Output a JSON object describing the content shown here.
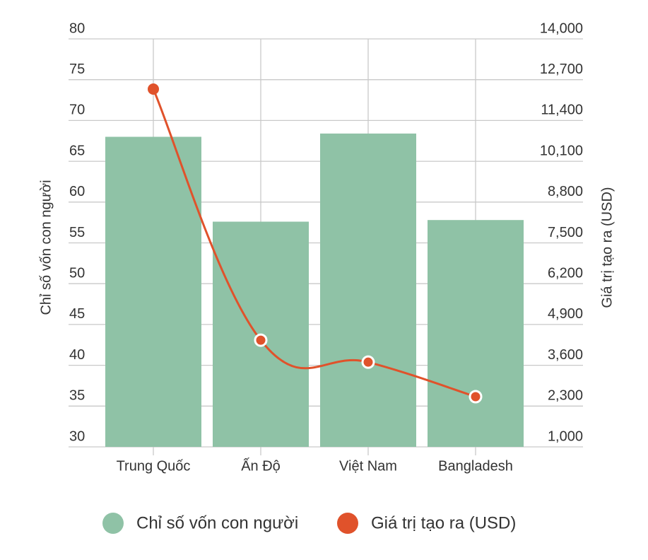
{
  "chart_data": {
    "type": "bar-line",
    "y_label": "Chỉ số vốn con người",
    "y2_label": "Giá trị tạo ra (USD)",
    "categories": [
      "Trung Quốc",
      "Ấn Độ",
      "Việt Nam",
      "Bangladesh"
    ],
    "series": [
      {
        "name": "Chỉ số vốn con người",
        "type": "bar",
        "color": "#8fc2a6",
        "values": [
          68,
          57.6,
          68.4,
          57.8
        ]
      },
      {
        "name": "Giá trị tạo ra (USD)",
        "type": "line",
        "axis": "y2",
        "color": "#e0522b",
        "values": [
          12400,
          4400,
          3700,
          2600
        ]
      }
    ],
    "ylim": [
      30,
      80
    ],
    "yticks": [
      30,
      35,
      40,
      45,
      50,
      55,
      60,
      65,
      70,
      75,
      80
    ],
    "y2lim": [
      1000,
      14000
    ],
    "y2ticks": [
      {
        "value": 1000,
        "label": "1,000"
      },
      {
        "value": 2300,
        "label": "2,300"
      },
      {
        "value": 3600,
        "label": "3,600"
      },
      {
        "value": 4900,
        "label": "4,900"
      },
      {
        "value": 6200,
        "label": "6,200"
      },
      {
        "value": 7500,
        "label": "7,500"
      },
      {
        "value": 8800,
        "label": "8,800"
      },
      {
        "value": 10100,
        "label": "10,100"
      },
      {
        "value": 11400,
        "label": "11,400"
      },
      {
        "value": 12700,
        "label": "12,700"
      },
      {
        "value": 14000,
        "label": "14,000"
      }
    ],
    "grid": true,
    "legend": "bottom"
  }
}
